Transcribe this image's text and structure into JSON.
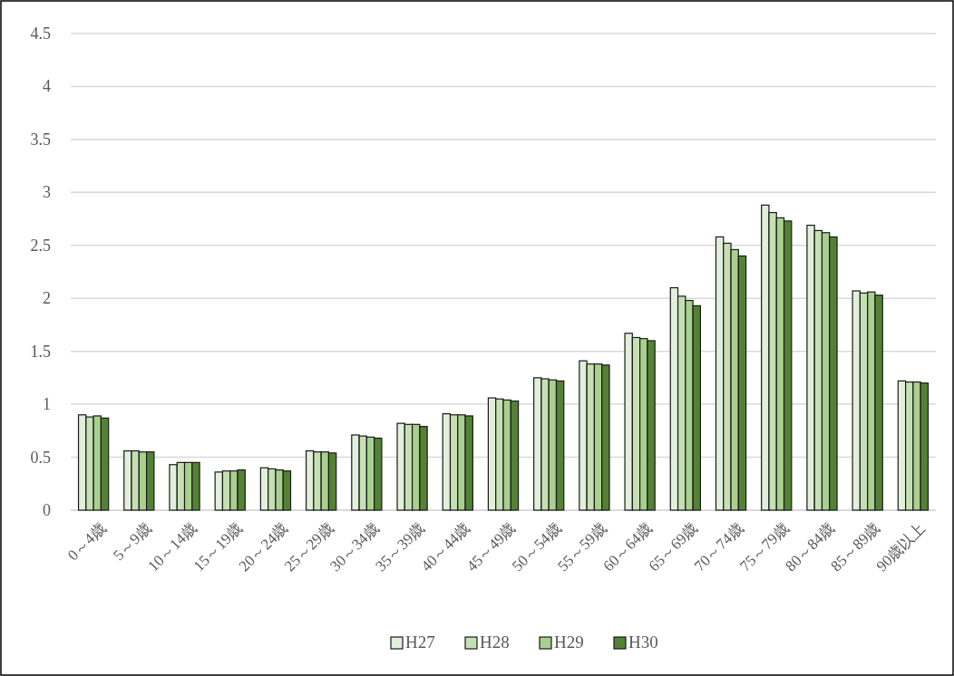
{
  "chart_data": {
    "type": "bar",
    "categories": [
      "0～4歳",
      "5～9歳",
      "10～14歳",
      "15～19歳",
      "20～24歳",
      "25～29歳",
      "30～34歳",
      "35～39歳",
      "40～44歳",
      "45～49歳",
      "50～54歳",
      "55～59歳",
      "60～64歳",
      "65～69歳",
      "70～74歳",
      "75～79歳",
      "80～84歳",
      "85～89歳",
      "90歳以上"
    ],
    "series": [
      {
        "name": "H27",
        "color": "#e2efda",
        "values": [
          0.9,
          0.56,
          0.43,
          0.36,
          0.4,
          0.56,
          0.71,
          0.82,
          0.91,
          1.06,
          1.25,
          1.41,
          1.67,
          2.1,
          2.58,
          2.88,
          2.69,
          2.07,
          1.22
        ]
      },
      {
        "name": "H28",
        "color": "#c6e0b4",
        "values": [
          0.88,
          0.56,
          0.45,
          0.37,
          0.39,
          0.55,
          0.7,
          0.81,
          0.9,
          1.05,
          1.24,
          1.38,
          1.63,
          2.02,
          2.52,
          2.81,
          2.64,
          2.05,
          1.21
        ]
      },
      {
        "name": "H29",
        "color": "#a9d08e",
        "values": [
          0.89,
          0.55,
          0.45,
          0.37,
          0.38,
          0.55,
          0.69,
          0.81,
          0.9,
          1.04,
          1.23,
          1.38,
          1.62,
          1.98,
          2.46,
          2.76,
          2.62,
          2.06,
          1.21
        ]
      },
      {
        "name": "H30",
        "color": "#548235",
        "values": [
          0.87,
          0.55,
          0.45,
          0.38,
          0.37,
          0.54,
          0.68,
          0.79,
          0.89,
          1.03,
          1.22,
          1.37,
          1.6,
          1.93,
          2.4,
          2.73,
          2.58,
          2.03,
          1.2
        ]
      }
    ],
    "ylim": [
      0,
      4.5
    ],
    "yticks": [
      0,
      0.5,
      1,
      1.5,
      2,
      2.5,
      3,
      3.5,
      4,
      4.5
    ],
    "grid": "y",
    "legend": "bottom"
  }
}
